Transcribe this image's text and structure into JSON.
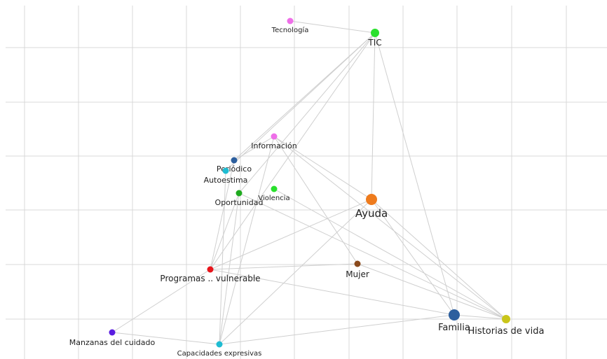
{
  "graph": {
    "nodes": [
      {
        "id": "tecnologia",
        "label": "Tecnología",
        "color": "#ee6fe8",
        "size": "small"
      },
      {
        "id": "tic",
        "label": "TIC",
        "color": "#29e02c",
        "size": "medium"
      },
      {
        "id": "informacion",
        "label": "Información",
        "color": "#ee6fe8",
        "size": "small"
      },
      {
        "id": "periodico",
        "label": "Periódico",
        "color": "#2d5f9e",
        "size": "small"
      },
      {
        "id": "autoestima",
        "label": "Autoestima",
        "color": "#1fbcd2",
        "size": "small"
      },
      {
        "id": "oportunidad",
        "label": "Oportunidad",
        "color": "#1faa1f",
        "size": "small"
      },
      {
        "id": "violencia",
        "label": "Violencia",
        "color": "#29e02c",
        "size": "small"
      },
      {
        "id": "ayuda",
        "label": "Ayuda",
        "color": "#ee7b1d",
        "size": "large"
      },
      {
        "id": "programas",
        "label": "Programas .. vulnerable",
        "color": "#e8141a",
        "size": "small"
      },
      {
        "id": "mujer",
        "label": "Mujer",
        "color": "#8a4a1c",
        "size": "small"
      },
      {
        "id": "familia",
        "label": "Familia",
        "color": "#2d5f9e",
        "size": "large"
      },
      {
        "id": "historias",
        "label": "Historias de vida",
        "color": "#c9c51a",
        "size": "medium"
      },
      {
        "id": "manzanas",
        "label": "Manzanas del cuidado",
        "color": "#5a1de0",
        "size": "small"
      },
      {
        "id": "capacidades",
        "label": "Capacidades expresivas",
        "color": "#1fbcd2",
        "size": "small"
      }
    ],
    "edges": [
      [
        "tecnologia",
        "tic"
      ],
      [
        "tic",
        "periodico"
      ],
      [
        "tic",
        "autoestima"
      ],
      [
        "tic",
        "oportunidad"
      ],
      [
        "tic",
        "programas"
      ],
      [
        "tic",
        "ayuda"
      ],
      [
        "tic",
        "familia"
      ],
      [
        "informacion",
        "periodico"
      ],
      [
        "informacion",
        "ayuda"
      ],
      [
        "informacion",
        "mujer"
      ],
      [
        "informacion",
        "historias"
      ],
      [
        "informacion",
        "capacidades"
      ],
      [
        "periodico",
        "programas"
      ],
      [
        "autoestima",
        "capacidades"
      ],
      [
        "oportunidad",
        "programas"
      ],
      [
        "oportunidad",
        "capacidades"
      ],
      [
        "oportunidad",
        "historias"
      ],
      [
        "violencia",
        "historias"
      ],
      [
        "ayuda",
        "programas"
      ],
      [
        "ayuda",
        "familia"
      ],
      [
        "ayuda",
        "historias"
      ],
      [
        "ayuda",
        "capacidades"
      ],
      [
        "programas",
        "mujer"
      ],
      [
        "programas",
        "familia"
      ],
      [
        "programas",
        "manzanas"
      ],
      [
        "mujer",
        "historias"
      ],
      [
        "familia",
        "historias"
      ],
      [
        "familia",
        "capacidades"
      ],
      [
        "manzanas",
        "capacidades"
      ]
    ]
  }
}
